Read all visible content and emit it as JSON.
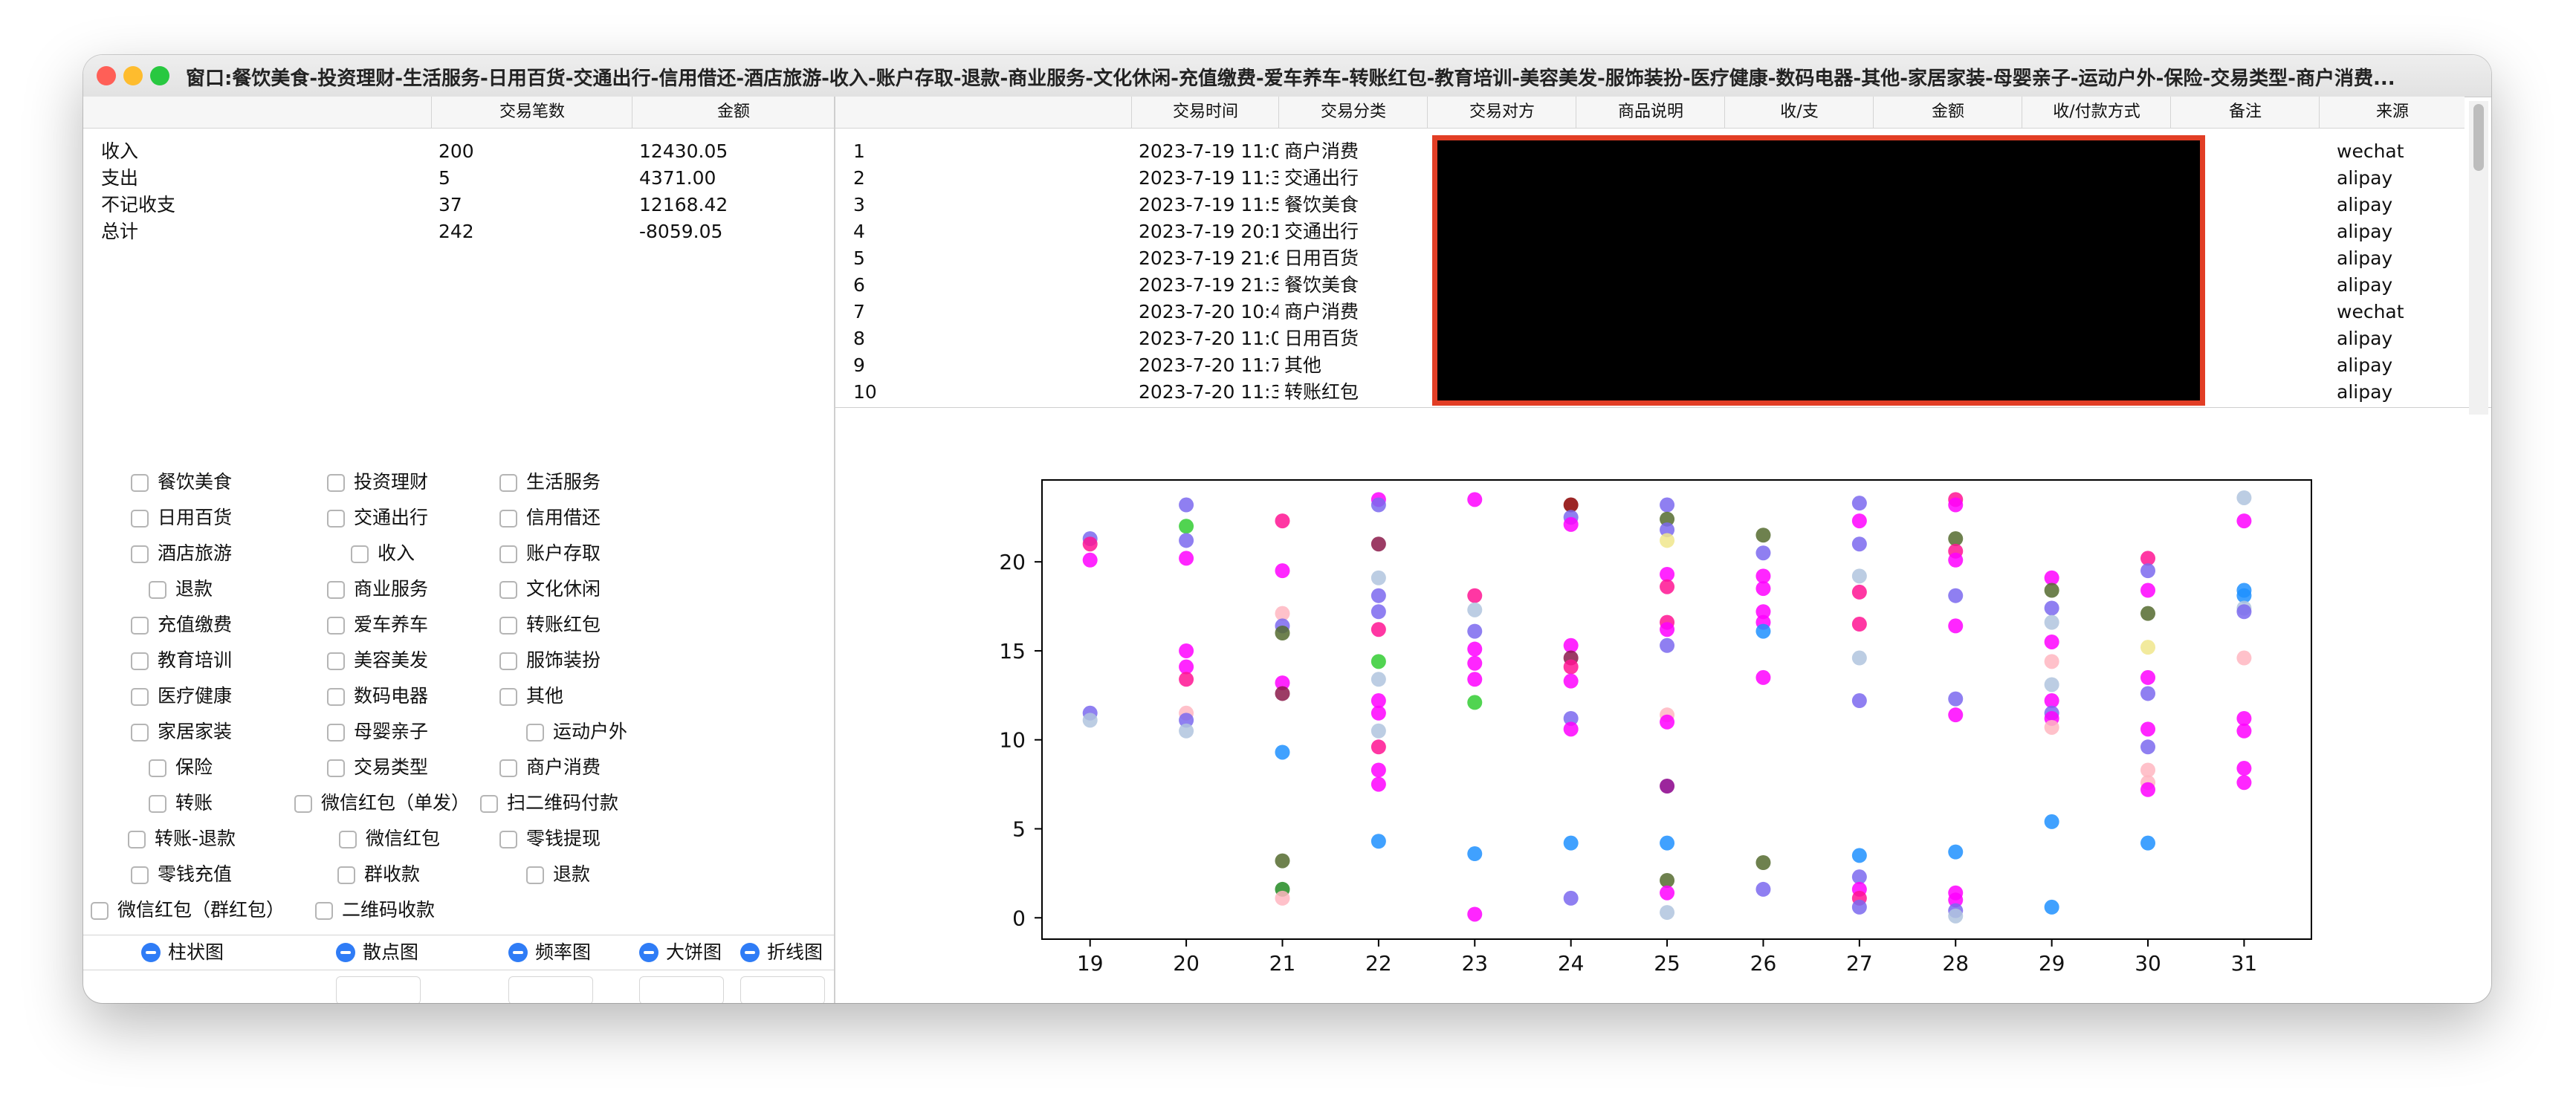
{
  "window": {
    "title": "窗口:餐饮美食-投资理财-生活服务-日用百货-交通出行-信用借还-酒店旅游-收入-账户存取-退款-商业服务-文化休闲-充值缴费-爱车养车-转账红包-教育培训-美容美发-服饰装扮-医疗健康-数码电器-其他-家居家装-母婴亲子-运动户外-保险-交易类型-商户消费..."
  },
  "summary": {
    "headers": [
      "",
      "交易笔数",
      "金额"
    ],
    "rows": [
      {
        "label": "收入",
        "count": "200",
        "amount": "12430.05"
      },
      {
        "label": "支出",
        "count": "5",
        "amount": "4371.00"
      },
      {
        "label": "不记收支",
        "count": "37",
        "amount": "12168.42"
      },
      {
        "label": "总计",
        "count": "242",
        "amount": "-8059.05"
      }
    ]
  },
  "filters": [
    "餐饮美食",
    "投资理财",
    "生活服务",
    "日用百货",
    "交通出行",
    "信用借还",
    "酒店旅游",
    "收入",
    "账户存取",
    "退款",
    "商业服务",
    "文化休闲",
    "充值缴费",
    "爱车养车",
    "转账红包",
    "教育培训",
    "美容美发",
    "服饰装扮",
    "医疗健康",
    "数码电器",
    "其他",
    "家居家装",
    "母婴亲子",
    "运动户外",
    "保险",
    "交易类型",
    "商户消费",
    "转账",
    "微信红包（单发）",
    "扫二维码付款",
    "转账-退款",
    "微信红包",
    "零钱提现",
    "零钱充值",
    "群收款",
    "退款",
    "微信红包（群红包）",
    "二维码收款"
  ],
  "chart_types": [
    "柱状图",
    "散点图",
    "频率图",
    "大饼图",
    "折线图"
  ],
  "transactions": {
    "headers": [
      "",
      "交易时间",
      "交易分类",
      "交易对方",
      "商品说明",
      "收/支",
      "金额",
      "收/付款方式",
      "备注",
      "来源"
    ],
    "rows": [
      {
        "idx": "1",
        "time": "2023-7-19 11:0",
        "category": "商户消费",
        "source": "wechat"
      },
      {
        "idx": "2",
        "time": "2023-7-19 11:3",
        "category": "交通出行",
        "source": "alipay"
      },
      {
        "idx": "3",
        "time": "2023-7-19 11:5",
        "category": "餐饮美食",
        "source": "alipay"
      },
      {
        "idx": "4",
        "time": "2023-7-19 20:1",
        "category": "交通出行",
        "source": "alipay"
      },
      {
        "idx": "5",
        "time": "2023-7-19 21:6",
        "category": "日用百货",
        "source": "alipay"
      },
      {
        "idx": "6",
        "time": "2023-7-19 21:3",
        "category": "餐饮美食",
        "source": "alipay"
      },
      {
        "idx": "7",
        "time": "2023-7-20 10:4",
        "category": "商户消费",
        "source": "wechat"
      },
      {
        "idx": "8",
        "time": "2023-7-20 11:0",
        "category": "日用百货",
        "source": "alipay"
      },
      {
        "idx": "9",
        "time": "2023-7-20 11:7",
        "category": "其他",
        "source": "alipay"
      },
      {
        "idx": "10",
        "time": "2023-7-20 11:3",
        "category": "转账红包",
        "source": "alipay"
      }
    ]
  },
  "chart_data": {
    "type": "scatter",
    "title": "",
    "xlabel": "",
    "ylabel": "",
    "xlim": [
      18.5,
      31.7
    ],
    "ylim": [
      -1.2,
      24.6
    ],
    "xticks": [
      19,
      20,
      21,
      22,
      23,
      24,
      25,
      26,
      27,
      28,
      29,
      30,
      31
    ],
    "yticks": [
      0,
      5,
      10,
      15,
      20
    ],
    "points": [
      [
        19,
        21.3,
        "#7b68ee"
      ],
      [
        19,
        21.0,
        "#ff1493"
      ],
      [
        19,
        20.1,
        "#ff00ff"
      ],
      [
        19,
        11.5,
        "#7b68ee"
      ],
      [
        19,
        11.1,
        "#b0c4de"
      ],
      [
        20,
        23.2,
        "#7b68ee"
      ],
      [
        20,
        22.0,
        "#32cd32"
      ],
      [
        20,
        21.2,
        "#7b68ee"
      ],
      [
        20,
        20.2,
        "#ff00ff"
      ],
      [
        20,
        15.0,
        "#ff00ff"
      ],
      [
        20,
        14.1,
        "#ff00ff"
      ],
      [
        20,
        13.4,
        "#ff1493"
      ],
      [
        20,
        11.5,
        "#ffb6c1"
      ],
      [
        20,
        11.1,
        "#7b68ee"
      ],
      [
        20,
        10.5,
        "#b0c4de"
      ],
      [
        21,
        22.3,
        "#ff1493"
      ],
      [
        21,
        19.5,
        "#ff00ff"
      ],
      [
        21,
        17.1,
        "#ffb6c1"
      ],
      [
        21,
        16.4,
        "#7b68ee"
      ],
      [
        21,
        16.0,
        "#556b2f"
      ],
      [
        21,
        13.2,
        "#ff00ff"
      ],
      [
        21,
        12.6,
        "#8b1a4a"
      ],
      [
        21,
        9.3,
        "#1e90ff"
      ],
      [
        21,
        3.2,
        "#556b2f"
      ],
      [
        21,
        1.6,
        "#228b22"
      ],
      [
        21,
        1.1,
        "#ffb6c1"
      ],
      [
        22,
        23.5,
        "#ff00ff"
      ],
      [
        22,
        23.2,
        "#7b68ee"
      ],
      [
        22,
        21.0,
        "#8b1a4a"
      ],
      [
        22,
        19.1,
        "#b0c4de"
      ],
      [
        22,
        18.1,
        "#7b68ee"
      ],
      [
        22,
        17.2,
        "#7b68ee"
      ],
      [
        22,
        16.2,
        "#ff1493"
      ],
      [
        22,
        14.4,
        "#32cd32"
      ],
      [
        22,
        13.4,
        "#b0c4de"
      ],
      [
        22,
        12.2,
        "#ff00ff"
      ],
      [
        22,
        11.5,
        "#ff00ff"
      ],
      [
        22,
        10.5,
        "#b0c4de"
      ],
      [
        22,
        9.6,
        "#ff1493"
      ],
      [
        22,
        8.3,
        "#ff00ff"
      ],
      [
        22,
        7.5,
        "#ff00ff"
      ],
      [
        22,
        4.3,
        "#1e90ff"
      ],
      [
        23,
        23.5,
        "#ff00ff"
      ],
      [
        23,
        18.1,
        "#ff1493"
      ],
      [
        23,
        17.3,
        "#b0c4de"
      ],
      [
        23,
        16.1,
        "#7b68ee"
      ],
      [
        23,
        15.1,
        "#ff00ff"
      ],
      [
        23,
        14.3,
        "#ff00ff"
      ],
      [
        23,
        13.4,
        "#ff00ff"
      ],
      [
        23,
        12.1,
        "#32cd32"
      ],
      [
        23,
        3.6,
        "#1e90ff"
      ],
      [
        23,
        0.2,
        "#ff00ff"
      ],
      [
        24,
        23.2,
        "#8b0000"
      ],
      [
        24,
        22.5,
        "#7b68ee"
      ],
      [
        24,
        22.1,
        "#ff00ff"
      ],
      [
        24,
        15.3,
        "#ff00ff"
      ],
      [
        24,
        14.6,
        "#8b1a4a"
      ],
      [
        24,
        14.1,
        "#ff1493"
      ],
      [
        24,
        13.3,
        "#ff00ff"
      ],
      [
        24,
        11.2,
        "#7b68ee"
      ],
      [
        24,
        10.6,
        "#ff00ff"
      ],
      [
        24,
        4.2,
        "#1e90ff"
      ],
      [
        24,
        1.1,
        "#7b68ee"
      ],
      [
        25,
        23.2,
        "#7b68ee"
      ],
      [
        25,
        22.4,
        "#556b2f"
      ],
      [
        25,
        21.8,
        "#7b68ee"
      ],
      [
        25,
        21.2,
        "#f0e68c"
      ],
      [
        25,
        19.3,
        "#ff00ff"
      ],
      [
        25,
        18.6,
        "#ff1493"
      ],
      [
        25,
        16.6,
        "#ff1493"
      ],
      [
        25,
        16.2,
        "#ff00ff"
      ],
      [
        25,
        15.3,
        "#7b68ee"
      ],
      [
        25,
        11.4,
        "#ffb6c1"
      ],
      [
        25,
        11.0,
        "#ff00ff"
      ],
      [
        25,
        7.4,
        "#8b008b"
      ],
      [
        25,
        4.2,
        "#1e90ff"
      ],
      [
        25,
        2.1,
        "#556b2f"
      ],
      [
        25,
        1.4,
        "#ff00ff"
      ],
      [
        25,
        0.3,
        "#b0c4de"
      ],
      [
        26,
        21.5,
        "#556b2f"
      ],
      [
        26,
        20.5,
        "#7b68ee"
      ],
      [
        26,
        19.2,
        "#ff00ff"
      ],
      [
        26,
        18.5,
        "#ff00ff"
      ],
      [
        26,
        17.2,
        "#ff00ff"
      ],
      [
        26,
        16.6,
        "#ff00ff"
      ],
      [
        26,
        16.1,
        "#1e90ff"
      ],
      [
        26,
        13.5,
        "#ff00ff"
      ],
      [
        26,
        3.1,
        "#556b2f"
      ],
      [
        26,
        1.6,
        "#7b68ee"
      ],
      [
        27,
        23.3,
        "#7b68ee"
      ],
      [
        27,
        22.3,
        "#ff00ff"
      ],
      [
        27,
        21.0,
        "#7b68ee"
      ],
      [
        27,
        19.2,
        "#b0c4de"
      ],
      [
        27,
        18.3,
        "#ff1493"
      ],
      [
        27,
        16.5,
        "#ff1493"
      ],
      [
        27,
        14.6,
        "#b0c4de"
      ],
      [
        27,
        12.2,
        "#7b68ee"
      ],
      [
        27,
        3.5,
        "#1e90ff"
      ],
      [
        27,
        2.3,
        "#7b68ee"
      ],
      [
        27,
        1.6,
        "#ff00ff"
      ],
      [
        27,
        1.1,
        "#ff1493"
      ],
      [
        27,
        0.6,
        "#7b68ee"
      ],
      [
        28,
        23.5,
        "#ff1493"
      ],
      [
        28,
        23.2,
        "#ff00ff"
      ],
      [
        28,
        21.3,
        "#556b2f"
      ],
      [
        28,
        20.6,
        "#ff1493"
      ],
      [
        28,
        20.1,
        "#ff00ff"
      ],
      [
        28,
        18.1,
        "#7b68ee"
      ],
      [
        28,
        16.4,
        "#ff00ff"
      ],
      [
        28,
        12.3,
        "#7b68ee"
      ],
      [
        28,
        11.4,
        "#ff00ff"
      ],
      [
        28,
        3.7,
        "#1e90ff"
      ],
      [
        28,
        1.4,
        "#ff00ff"
      ],
      [
        28,
        1.0,
        "#ff00ff"
      ],
      [
        28,
        0.4,
        "#7b68ee"
      ],
      [
        28,
        0.1,
        "#b0c4de"
      ],
      [
        29,
        19.1,
        "#ff00ff"
      ],
      [
        29,
        18.4,
        "#556b2f"
      ],
      [
        29,
        17.4,
        "#7b68ee"
      ],
      [
        29,
        16.6,
        "#b0c4de"
      ],
      [
        29,
        15.5,
        "#ff00ff"
      ],
      [
        29,
        14.4,
        "#ffb6c1"
      ],
      [
        29,
        13.1,
        "#b0c4de"
      ],
      [
        29,
        12.2,
        "#ff00ff"
      ],
      [
        29,
        11.5,
        "#7b68ee"
      ],
      [
        29,
        11.2,
        "#ff00ff"
      ],
      [
        29,
        10.7,
        "#ffb6c1"
      ],
      [
        29,
        5.4,
        "#1e90ff"
      ],
      [
        29,
        0.6,
        "#1e90ff"
      ],
      [
        30,
        20.2,
        "#ff1493"
      ],
      [
        30,
        19.5,
        "#7b68ee"
      ],
      [
        30,
        18.4,
        "#ff00ff"
      ],
      [
        30,
        17.1,
        "#556b2f"
      ],
      [
        30,
        15.2,
        "#f0e68c"
      ],
      [
        30,
        13.5,
        "#ff00ff"
      ],
      [
        30,
        12.6,
        "#7b68ee"
      ],
      [
        30,
        10.6,
        "#ff00ff"
      ],
      [
        30,
        9.6,
        "#7b68ee"
      ],
      [
        30,
        8.3,
        "#ffb6c1"
      ],
      [
        30,
        7.6,
        "#ffb6c1"
      ],
      [
        30,
        7.2,
        "#ff00ff"
      ],
      [
        30,
        4.2,
        "#1e90ff"
      ],
      [
        31,
        23.6,
        "#b0c4de"
      ],
      [
        31,
        22.3,
        "#ff00ff"
      ],
      [
        31,
        18.4,
        "#1e90ff"
      ],
      [
        31,
        18.1,
        "#1e90ff"
      ],
      [
        31,
        17.4,
        "#b0c4de"
      ],
      [
        31,
        17.2,
        "#7b68ee"
      ],
      [
        31,
        14.6,
        "#ffb6c1"
      ],
      [
        31,
        11.2,
        "#ff00ff"
      ],
      [
        31,
        10.5,
        "#ff00ff"
      ],
      [
        31,
        8.4,
        "#ff00ff"
      ],
      [
        31,
        7.6,
        "#ff00ff"
      ]
    ]
  }
}
